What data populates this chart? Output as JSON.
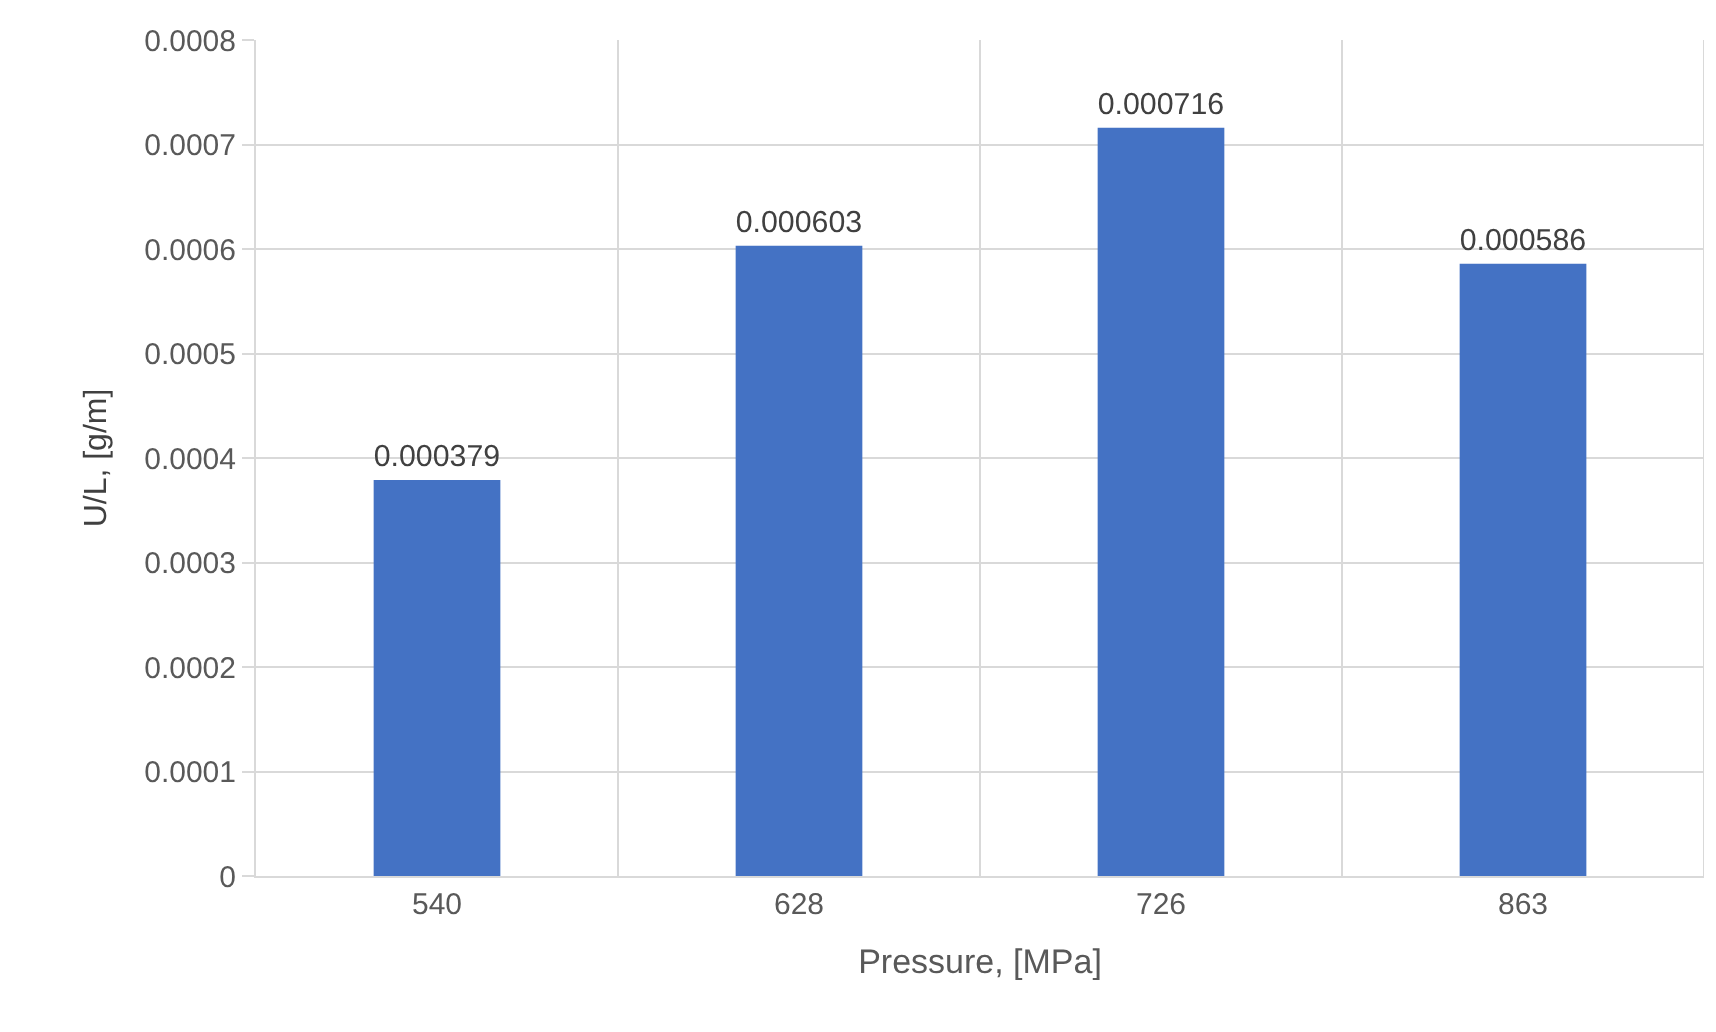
{
  "chart_data": {
    "type": "bar",
    "xlabel": "Pressure, [MPa]",
    "ylabel": "U/L, [g/m]",
    "categories": [
      "540",
      "628",
      "726",
      "863"
    ],
    "values": [
      0.000379,
      0.000603,
      0.000716,
      0.000586
    ],
    "color": "#4472c4",
    "ylim": [
      0,
      0.0008
    ],
    "yticks": [
      0,
      0.0001,
      0.0002,
      0.0003,
      0.0004,
      0.0005,
      0.0006,
      0.0007,
      0.0008
    ],
    "grid": true,
    "data_labels": true
  }
}
